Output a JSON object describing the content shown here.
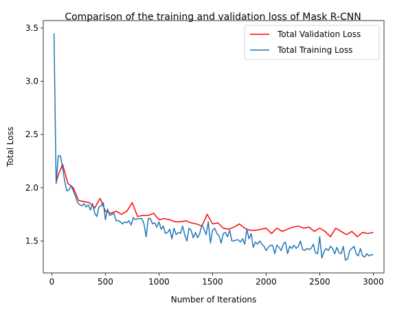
{
  "chart_data": {
    "type": "line",
    "title": "Comparison of the training and validation loss of Mask R-CNN",
    "xlabel": "Number of Iterations",
    "ylabel": "Total Loss",
    "xlim": [
      -80,
      3100
    ],
    "ylim": [
      1.2,
      3.57
    ],
    "xticks": [
      0,
      500,
      1000,
      1500,
      2000,
      2500,
      3000
    ],
    "yticks": [
      1.5,
      2.0,
      2.5,
      3.0,
      3.5
    ],
    "xtick_labels": [
      "0",
      "500",
      "1000",
      "1500",
      "2000",
      "2500",
      "3000"
    ],
    "ytick_labels": [
      "1.5",
      "2.0",
      "2.5",
      "3.0",
      "3.5"
    ],
    "grid": false,
    "legend_position": "top-right",
    "series": [
      {
        "name": "Total Validation Loss",
        "color": "#ff0000",
        "x": [
          40,
          60,
          100,
          150,
          200,
          250,
          300,
          350,
          400,
          450,
          500,
          550,
          600,
          650,
          700,
          750,
          800,
          850,
          900,
          950,
          1000,
          1050,
          1100,
          1150,
          1200,
          1250,
          1300,
          1350,
          1400,
          1450,
          1500,
          1550,
          1600,
          1650,
          1700,
          1750,
          1800,
          1850,
          1900,
          1950,
          2000,
          2050,
          2100,
          2150,
          2200,
          2250,
          2300,
          2350,
          2400,
          2450,
          2500,
          2550,
          2600,
          2650,
          2700,
          2750,
          2800,
          2850,
          2900,
          2950,
          3000
        ],
        "values": [
          2.05,
          2.12,
          2.22,
          2.04,
          2.0,
          1.88,
          1.87,
          1.86,
          1.81,
          1.9,
          1.78,
          1.76,
          1.78,
          1.75,
          1.78,
          1.86,
          1.73,
          1.74,
          1.74,
          1.76,
          1.7,
          1.71,
          1.7,
          1.68,
          1.68,
          1.69,
          1.67,
          1.66,
          1.64,
          1.75,
          1.66,
          1.67,
          1.62,
          1.61,
          1.63,
          1.66,
          1.62,
          1.6,
          1.6,
          1.61,
          1.62,
          1.57,
          1.62,
          1.59,
          1.61,
          1.63,
          1.64,
          1.62,
          1.63,
          1.59,
          1.62,
          1.59,
          1.54,
          1.62,
          1.59,
          1.56,
          1.59,
          1.54,
          1.58,
          1.57,
          1.58
        ]
      },
      {
        "name": "Total Training Loss",
        "color": "#1f77b4",
        "x": [
          20,
          40,
          60,
          80,
          100,
          120,
          140,
          160,
          180,
          200,
          220,
          240,
          260,
          280,
          300,
          320,
          340,
          360,
          380,
          400,
          420,
          440,
          460,
          480,
          500,
          520,
          540,
          560,
          580,
          600,
          620,
          640,
          660,
          680,
          700,
          720,
          740,
          760,
          780,
          800,
          820,
          840,
          860,
          880,
          900,
          920,
          940,
          960,
          980,
          1000,
          1020,
          1040,
          1060,
          1080,
          1100,
          1120,
          1140,
          1160,
          1180,
          1200,
          1220,
          1240,
          1260,
          1280,
          1300,
          1320,
          1340,
          1360,
          1380,
          1400,
          1420,
          1440,
          1460,
          1480,
          1500,
          1520,
          1540,
          1560,
          1580,
          1600,
          1620,
          1640,
          1660,
          1680,
          1700,
          1720,
          1740,
          1760,
          1780,
          1800,
          1820,
          1840,
          1860,
          1880,
          1900,
          1920,
          1940,
          1960,
          1980,
          2000,
          2020,
          2040,
          2060,
          2080,
          2100,
          2120,
          2140,
          2160,
          2180,
          2200,
          2220,
          2240,
          2260,
          2280,
          2300,
          2320,
          2340,
          2360,
          2380,
          2400,
          2420,
          2440,
          2460,
          2480,
          2500,
          2520,
          2540,
          2560,
          2580,
          2600,
          2620,
          2640,
          2660,
          2680,
          2700,
          2720,
          2740,
          2760,
          2780,
          2800,
          2820,
          2840,
          2860,
          2880,
          2900,
          2920,
          2940,
          2960,
          2980,
          3000
        ],
        "values": [
          3.45,
          2.04,
          2.3,
          2.3,
          2.19,
          2.06,
          1.97,
          1.98,
          2.02,
          1.97,
          1.92,
          1.86,
          1.84,
          1.83,
          1.85,
          1.82,
          1.84,
          1.79,
          1.85,
          1.76,
          1.73,
          1.82,
          1.83,
          1.86,
          1.7,
          1.8,
          1.74,
          1.75,
          1.76,
          1.69,
          1.69,
          1.68,
          1.66,
          1.68,
          1.67,
          1.69,
          1.65,
          1.72,
          1.7,
          1.71,
          1.71,
          1.71,
          1.66,
          1.54,
          1.71,
          1.71,
          1.66,
          1.67,
          1.63,
          1.68,
          1.61,
          1.64,
          1.57,
          1.58,
          1.61,
          1.52,
          1.62,
          1.56,
          1.58,
          1.57,
          1.64,
          1.56,
          1.5,
          1.62,
          1.6,
          1.53,
          1.58,
          1.53,
          1.57,
          1.65,
          1.61,
          1.56,
          1.68,
          1.48,
          1.6,
          1.62,
          1.57,
          1.55,
          1.48,
          1.57,
          1.58,
          1.54,
          1.6,
          1.5,
          1.5,
          1.51,
          1.51,
          1.49,
          1.52,
          1.47,
          1.61,
          1.52,
          1.57,
          1.44,
          1.49,
          1.47,
          1.5,
          1.47,
          1.45,
          1.41,
          1.44,
          1.46,
          1.46,
          1.38,
          1.46,
          1.44,
          1.41,
          1.47,
          1.49,
          1.38,
          1.45,
          1.43,
          1.46,
          1.43,
          1.45,
          1.5,
          1.42,
          1.41,
          1.43,
          1.42,
          1.43,
          1.47,
          1.39,
          1.38,
          1.54,
          1.34,
          1.4,
          1.43,
          1.41,
          1.45,
          1.43,
          1.38,
          1.44,
          1.39,
          1.38,
          1.45,
          1.32,
          1.33,
          1.41,
          1.43,
          1.45,
          1.38,
          1.36,
          1.43,
          1.36,
          1.35,
          1.38,
          1.36,
          1.37,
          1.37
        ]
      }
    ]
  }
}
